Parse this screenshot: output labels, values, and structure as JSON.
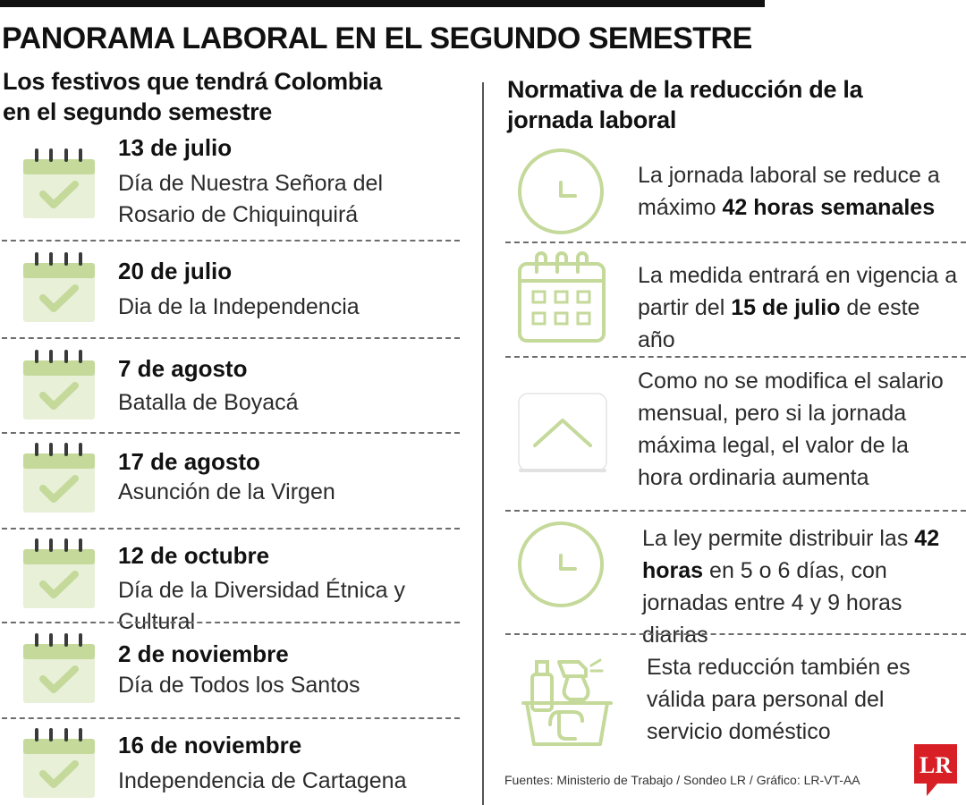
{
  "title": "PANORAMA LABORAL EN EL SEGUNDO SEMESTRE",
  "left_heading": "Los festivos que tendrá Colombia en el segundo semestre",
  "right_heading": "Normativa de la reducción de la jornada laboral",
  "holidays": [
    {
      "date": "13 de julio",
      "name": "Día de Nuestra Señora del Rosario de Chiquinquirá"
    },
    {
      "date": "20 de julio",
      "name": "Dia de la Independencia"
    },
    {
      "date": "7 de agosto",
      "name": "Batalla de Boyacá"
    },
    {
      "date": "17 de agosto",
      "name": "Asunción de la Virgen"
    },
    {
      "date": "12 de octubre",
      "name": "Día de la Diversidad Étnica y Cultural"
    },
    {
      "date": "2 de noviembre",
      "name": "Día de Todos los Santos"
    },
    {
      "date": "16 de noviembre",
      "name": "Independencia de Cartagena"
    }
  ],
  "rules": {
    "r1": {
      "a": "La jornada laboral se reduce a máximo ",
      "b": "42 horas semanales",
      "c": ""
    },
    "r2": {
      "a": "La medida entrará en vigencia a partir del ",
      "b": "15 de julio",
      "c": " de este año"
    },
    "r3": {
      "a": "Como no se modifica el salario mensual, pero si la jornada máxima legal, el valor de la hora ordinaria aumenta"
    },
    "r4": {
      "a": "La ley permite distribuir las ",
      "b": "42 horas",
      "c": " en 5 o 6 días, con jornadas entre 4 y 9 horas diarias"
    },
    "r5": {
      "a": "Esta reducción también es válida para personal del servicio doméstico"
    }
  },
  "sources": "Fuentes: Ministerio de Trabajo / Sondeo LR / Gráfico: LR-VT-AA",
  "logo_text": "LR",
  "colors": {
    "accent_green": "#c4d99a",
    "light_green": "#e8f0d8",
    "logo_red": "#d81f26"
  },
  "icons": [
    "calendar-check-icon",
    "clock-icon",
    "calendar-icon",
    "chevron-up-icon",
    "cleaning-basket-icon"
  ]
}
